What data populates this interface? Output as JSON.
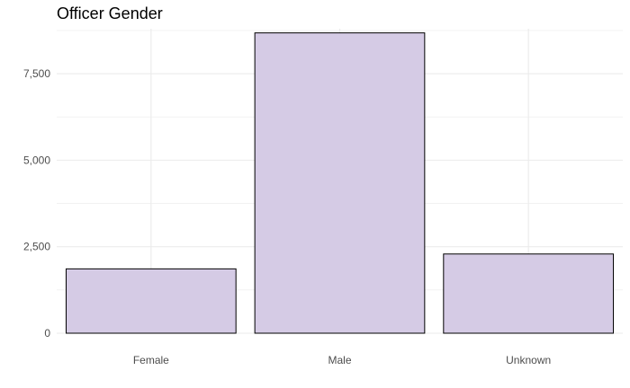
{
  "chart_data": {
    "type": "bar",
    "title": "Officer Gender",
    "xlabel": "",
    "ylabel": "",
    "categories": [
      "Female",
      "Male",
      "Unknown"
    ],
    "values": [
      1860,
      8680,
      2290
    ],
    "ylim": [
      0,
      8800
    ],
    "yticks": [
      0,
      2500,
      5000,
      7500
    ],
    "ytick_labels": [
      "0",
      "2,500",
      "5,000",
      "7,500"
    ],
    "grid": true,
    "legend": "none",
    "bar_fill": "#d5cbe5",
    "bar_stroke": "#000000",
    "grid_color": "#ebebeb"
  }
}
